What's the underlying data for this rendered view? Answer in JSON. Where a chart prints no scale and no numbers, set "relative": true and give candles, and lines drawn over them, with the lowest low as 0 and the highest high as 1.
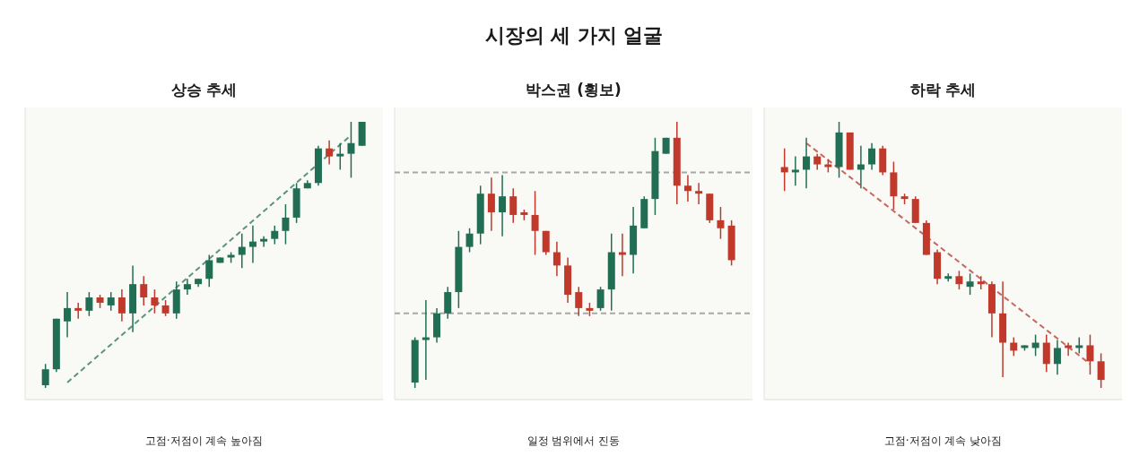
{
  "chart_data": [
    {
      "type": "other",
      "title": "시장의 세 가지 얼굴"
    },
    {
      "type": "candlestick",
      "title": "상승 추세",
      "relative": true,
      "categories": [
        null,
        null,
        null,
        null,
        null,
        null,
        null,
        null,
        null,
        null,
        null,
        null,
        null,
        null,
        null,
        null,
        null,
        null,
        null,
        null,
        null,
        null,
        null,
        null,
        null,
        null,
        null,
        null,
        null,
        null
      ],
      "ohlc": [
        [
          0.01,
          0.09,
          0,
          0.07
        ],
        [
          0.07,
          0.26,
          0.06,
          0.26
        ],
        [
          0.25,
          0.36,
          0.19,
          0.3
        ],
        [
          0.3,
          0.32,
          0.26,
          0.29
        ],
        [
          0.29,
          0.36,
          0.27,
          0.34
        ],
        [
          0.34,
          0.35,
          0.3,
          0.32
        ],
        [
          0.31,
          0.36,
          0.29,
          0.34
        ],
        [
          0.34,
          0.37,
          0.25,
          0.28
        ],
        [
          0.28,
          0.46,
          0.21,
          0.39
        ],
        [
          0.39,
          0.42,
          0.31,
          0.34
        ],
        [
          0.34,
          0.37,
          0.28,
          0.31
        ],
        [
          0.31,
          0.33,
          0.27,
          0.28
        ],
        [
          0.28,
          0.4,
          0.26,
          0.37
        ],
        [
          0.37,
          0.41,
          0.35,
          0.39
        ],
        [
          0.39,
          0.41,
          0.38,
          0.41
        ],
        [
          0.41,
          0.5,
          0.38,
          0.48
        ],
        [
          0.47,
          0.49,
          0.47,
          0.49
        ],
        [
          0.49,
          0.51,
          0.47,
          0.5
        ],
        [
          0.5,
          0.58,
          0.45,
          0.53
        ],
        [
          0.53,
          0.61,
          0.47,
          0.55
        ],
        [
          0.55,
          0.57,
          0.53,
          0.56
        ],
        [
          0.56,
          0.61,
          0.54,
          0.59
        ],
        [
          0.59,
          0.69,
          0.54,
          0.64
        ],
        [
          0.64,
          0.77,
          0.62,
          0.75
        ],
        [
          0.75,
          0.78,
          0.75,
          0.77
        ],
        [
          0.77,
          0.91,
          0.76,
          0.9
        ],
        [
          0.9,
          0.93,
          0.84,
          0.87
        ],
        [
          0.87,
          0.92,
          0.82,
          0.88
        ],
        [
          0.88,
          1.0,
          0.79,
          0.92
        ],
        [
          0.91,
          1.0,
          0.91,
          1.0
        ]
      ],
      "colors": [
        "#226e55",
        "#226e55",
        "#226e55",
        "#c0392b",
        "#226e55",
        "#c0392b",
        "#226e55",
        "#c0392b",
        "#226e55",
        "#c0392b",
        "#c0392b",
        "#c0392b",
        "#226e55",
        "#226e55",
        "#226e55",
        "#226e55",
        "#226e55",
        "#226e55",
        "#226e55",
        "#226e55",
        "#226e55",
        "#226e55",
        "#226e55",
        "#226e55",
        "#226e55",
        "#226e55",
        "#c0392b",
        "#226e55",
        "#226e55",
        "#226e55"
      ],
      "series": [
        {
          "type": "line",
          "color": "#5b937d",
          "line_style": "dashed",
          "values": [
            null,
            null,
            0.02,
            null,
            null,
            null,
            null,
            null,
            null,
            null,
            null,
            null,
            null,
            null,
            null,
            null,
            null,
            null,
            null,
            null,
            null,
            null,
            null,
            null,
            null,
            null,
            null,
            null,
            0.95,
            null
          ]
        }
      ],
      "annotations": [
        "고점·저점이 계속 높아짐"
      ]
    },
    {
      "type": "candlestick",
      "title": "박스권 (횡보)",
      "relative": true,
      "categories": [
        null,
        null,
        null,
        null,
        null,
        null,
        null,
        null,
        null,
        null,
        null,
        null,
        null,
        null,
        null,
        null,
        null,
        null,
        null,
        null,
        null,
        null,
        null,
        null,
        null,
        null,
        null,
        null,
        null,
        null
      ],
      "ohlc": [
        [
          0.02,
          0.19,
          0,
          0.18
        ],
        [
          0.18,
          0.33,
          0.03,
          0.19
        ],
        [
          0.19,
          0.3,
          0.17,
          0.28
        ],
        [
          0.28,
          0.38,
          0.26,
          0.36
        ],
        [
          0.36,
          0.59,
          0.3,
          0.53
        ],
        [
          0.53,
          0.6,
          0.51,
          0.58
        ],
        [
          0.58,
          0.76,
          0.54,
          0.73
        ],
        [
          0.73,
          0.79,
          0.59,
          0.66
        ],
        [
          0.66,
          0.8,
          0.57,
          0.72
        ],
        [
          0.72,
          0.75,
          0.62,
          0.65
        ],
        [
          0.66,
          0.67,
          0.63,
          0.65
        ],
        [
          0.65,
          0.74,
          0.5,
          0.59
        ],
        [
          0.59,
          0.59,
          0.5,
          0.51
        ],
        [
          0.51,
          0.55,
          0.42,
          0.46
        ],
        [
          0.46,
          0.49,
          0.32,
          0.35
        ],
        [
          0.36,
          0.38,
          0.27,
          0.3
        ],
        [
          0.3,
          0.32,
          0.27,
          0.29
        ],
        [
          0.3,
          0.38,
          0.29,
          0.37
        ],
        [
          0.37,
          0.58,
          0.29,
          0.51
        ],
        [
          0.51,
          0.58,
          0.42,
          0.5
        ],
        [
          0.5,
          0.68,
          0.43,
          0.61
        ],
        [
          0.6,
          0.72,
          0.6,
          0.71
        ],
        [
          0.71,
          0.94,
          0.65,
          0.89
        ],
        [
          0.88,
          0.94,
          0.88,
          0.94
        ],
        [
          0.94,
          1.0,
          0.69,
          0.76
        ],
        [
          0.76,
          0.8,
          0.7,
          0.74
        ],
        [
          0.74,
          0.77,
          0.69,
          0.73
        ],
        [
          0.73,
          0.73,
          0.62,
          0.63
        ],
        [
          0.63,
          0.68,
          0.56,
          0.6
        ],
        [
          0.61,
          0.63,
          0.46,
          0.48
        ]
      ],
      "colors": [
        "#226e55",
        "#226e55",
        "#226e55",
        "#226e55",
        "#226e55",
        "#226e55",
        "#226e55",
        "#c0392b",
        "#226e55",
        "#c0392b",
        "#c0392b",
        "#c0392b",
        "#c0392b",
        "#c0392b",
        "#c0392b",
        "#c0392b",
        "#c0392b",
        "#226e55",
        "#226e55",
        "#c0392b",
        "#226e55",
        "#226e55",
        "#226e55",
        "#226e55",
        "#c0392b",
        "#c0392b",
        "#c0392b",
        "#c0392b",
        "#c0392b",
        "#c0392b"
      ],
      "ref_lines": [
        {
          "axis": "y",
          "value": 0.81,
          "color": "#a8a8a4",
          "line_style": "dashed"
        },
        {
          "axis": "y",
          "value": 0.28,
          "color": "#a8a8a4",
          "line_style": "dashed"
        }
      ],
      "annotations": [
        "일정 범위에서 진동"
      ]
    },
    {
      "type": "candlestick",
      "title": "하락 추세",
      "relative": true,
      "categories": [
        null,
        null,
        null,
        null,
        null,
        null,
        null,
        null,
        null,
        null,
        null,
        null,
        null,
        null,
        null,
        null,
        null,
        null,
        null,
        null,
        null,
        null,
        null,
        null,
        null,
        null,
        null,
        null,
        null,
        null
      ],
      "ohlc": [
        [
          0.83,
          0.9,
          0.74,
          0.81
        ],
        [
          0.81,
          0.87,
          0.76,
          0.82
        ],
        [
          0.82,
          0.94,
          0.75,
          0.87
        ],
        [
          0.87,
          0.88,
          0.82,
          0.84
        ],
        [
          0.84,
          0.86,
          0.81,
          0.83
        ],
        [
          0.83,
          1.0,
          0.79,
          0.96
        ],
        [
          0.96,
          0.96,
          0.82,
          0.82
        ],
        [
          0.82,
          0.91,
          0.75,
          0.84
        ],
        [
          0.84,
          0.92,
          0.82,
          0.9
        ],
        [
          0.9,
          0.91,
          0.8,
          0.81
        ],
        [
          0.81,
          0.85,
          0.67,
          0.72
        ],
        [
          0.72,
          0.73,
          0.69,
          0.71
        ],
        [
          0.71,
          0.72,
          0.62,
          0.62
        ],
        [
          0.62,
          0.63,
          0.5,
          0.5
        ],
        [
          0.51,
          0.52,
          0.39,
          0.41
        ],
        [
          0.41,
          0.43,
          0.4,
          0.42
        ],
        [
          0.42,
          0.44,
          0.37,
          0.39
        ],
        [
          0.38,
          0.43,
          0.35,
          0.4
        ],
        [
          0.4,
          0.42,
          0.37,
          0.39
        ],
        [
          0.39,
          0.4,
          0.19,
          0.28
        ],
        [
          0.28,
          0.4,
          0.04,
          0.17
        ],
        [
          0.17,
          0.19,
          0.12,
          0.14
        ],
        [
          0.15,
          0.16,
          0.14,
          0.16
        ],
        [
          0.15,
          0.2,
          0.12,
          0.17
        ],
        [
          0.17,
          0.2,
          0.06,
          0.09
        ],
        [
          0.09,
          0.18,
          0.05,
          0.15
        ],
        [
          0.16,
          0.17,
          0.12,
          0.15
        ],
        [
          0.15,
          0.19,
          0.13,
          0.16
        ],
        [
          0.16,
          0.2,
          0.05,
          0.1
        ],
        [
          0.1,
          0.13,
          0,
          0.03
        ]
      ],
      "colors": [
        "#c0392b",
        "#226e55",
        "#226e55",
        "#c0392b",
        "#c0392b",
        "#226e55",
        "#c0392b",
        "#226e55",
        "#226e55",
        "#c0392b",
        "#c0392b",
        "#c0392b",
        "#c0392b",
        "#c0392b",
        "#c0392b",
        "#226e55",
        "#c0392b",
        "#226e55",
        "#c0392b",
        "#c0392b",
        "#c0392b",
        "#c0392b",
        "#226e55",
        "#226e55",
        "#c0392b",
        "#226e55",
        "#c0392b",
        "#226e55",
        "#c0392b",
        "#c0392b"
      ],
      "series": [
        {
          "type": "line",
          "color": "#c8665e",
          "line_style": "dashed",
          "values": [
            null,
            null,
            0.92,
            null,
            null,
            null,
            null,
            null,
            null,
            null,
            null,
            null,
            null,
            null,
            null,
            null,
            null,
            null,
            null,
            null,
            null,
            null,
            null,
            null,
            null,
            null,
            null,
            null,
            0.09,
            null
          ]
        }
      ],
      "annotations": [
        "고점·저점이 계속 낮아짐"
      ]
    }
  ]
}
